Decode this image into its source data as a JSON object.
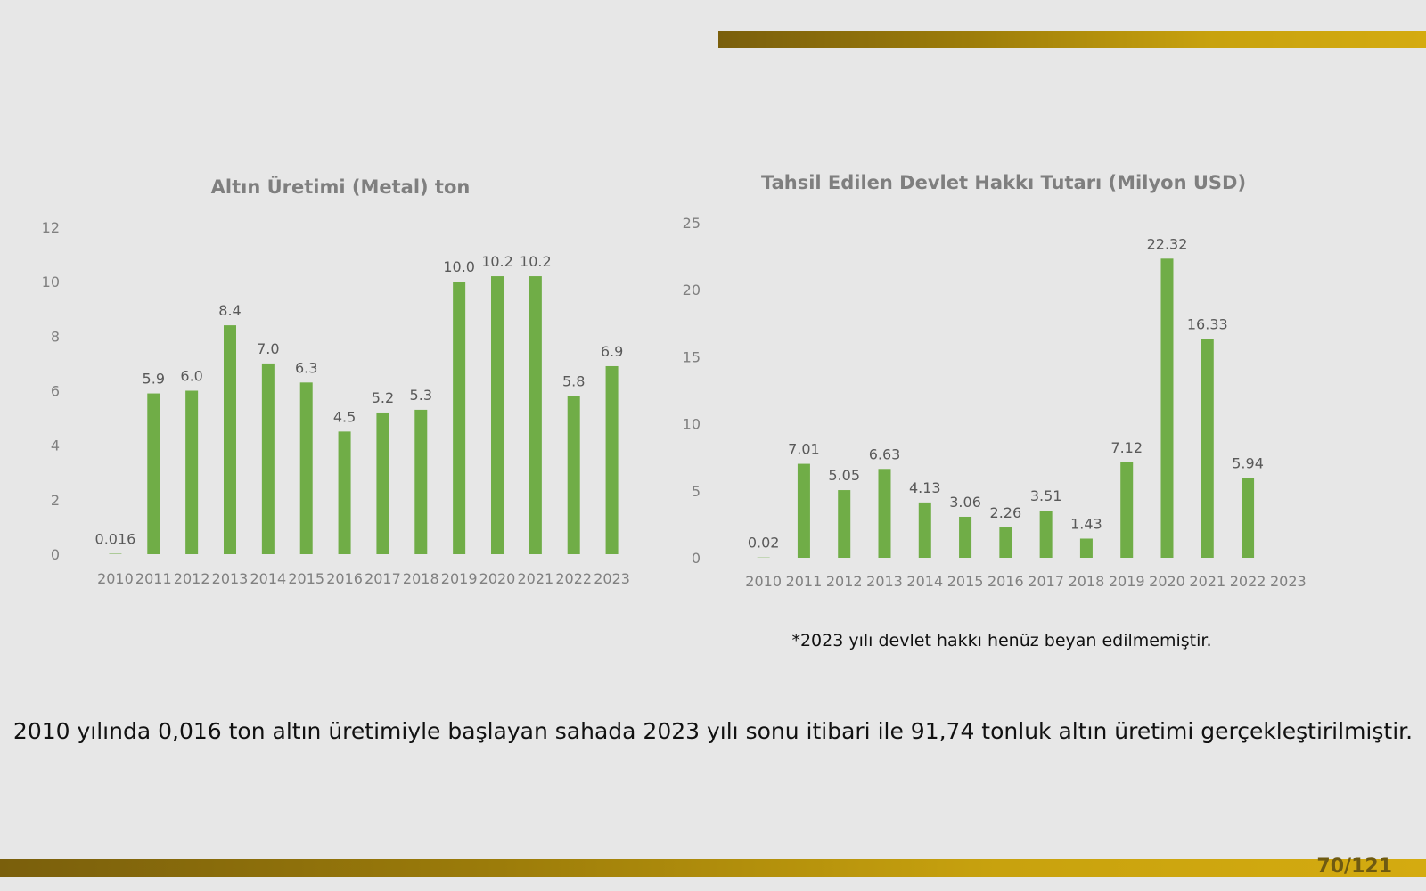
{
  "page": {
    "number": "70/121",
    "footnote": "*2023 yılı devlet hakkı henüz beyan edilmemiştir.",
    "summary": "2010 yılında 0,016 ton altın üretimiyle başlayan sahada 2023 yılı sonu itibari ile 91,74 tonluk altın üretimi gerçekleştirilmiştir.",
    "accent_color": "#b8930c"
  },
  "chart_data": [
    {
      "type": "bar",
      "title": "Altın Üretimi (Metal) ton",
      "categories": [
        "2010",
        "2011",
        "2012",
        "2013",
        "2014",
        "2015",
        "2016",
        "2017",
        "2018",
        "2019",
        "2020",
        "2021",
        "2022",
        "2023"
      ],
      "values": [
        0.016,
        5.9,
        6.0,
        8.4,
        7.0,
        6.3,
        4.5,
        5.2,
        5.3,
        10.0,
        10.2,
        10.2,
        5.8,
        6.9
      ],
      "data_labels": [
        "0.016",
        "5.9",
        "6.0",
        "8.4",
        "7.0",
        "6.3",
        "4.5",
        "5.2",
        "5.3",
        "10.0",
        "10.2",
        "10.2",
        "5.8",
        "6.9"
      ],
      "ylim": [
        0,
        12
      ],
      "yticks": [
        "0",
        "2",
        "4",
        "6",
        "8",
        "10",
        "12"
      ],
      "bar_color": "#70ad47",
      "grid": false,
      "legend": "none"
    },
    {
      "type": "bar",
      "title": "Tahsil Edilen Devlet Hakkı Tutarı (Milyon USD)",
      "categories": [
        "2010",
        "2011",
        "2012",
        "2013",
        "2014",
        "2015",
        "2016",
        "2017",
        "2018",
        "2019",
        "2020",
        "2021",
        "2022",
        "2023"
      ],
      "values": [
        0.02,
        7.01,
        5.05,
        6.63,
        4.13,
        3.06,
        2.26,
        3.51,
        1.43,
        7.12,
        22.32,
        16.33,
        5.94,
        null
      ],
      "data_labels": [
        "0.02",
        "7.01",
        "5.05",
        "6.63",
        "4.13",
        "3.06",
        "2.26",
        "3.51",
        "1.43",
        "7.12",
        "22.32",
        "16.33",
        "5.94",
        ""
      ],
      "ylim": [
        0,
        25
      ],
      "yticks": [
        "0",
        "5",
        "10",
        "15",
        "20",
        "25"
      ],
      "bar_color": "#70ad47",
      "grid": false,
      "legend": "none"
    }
  ]
}
